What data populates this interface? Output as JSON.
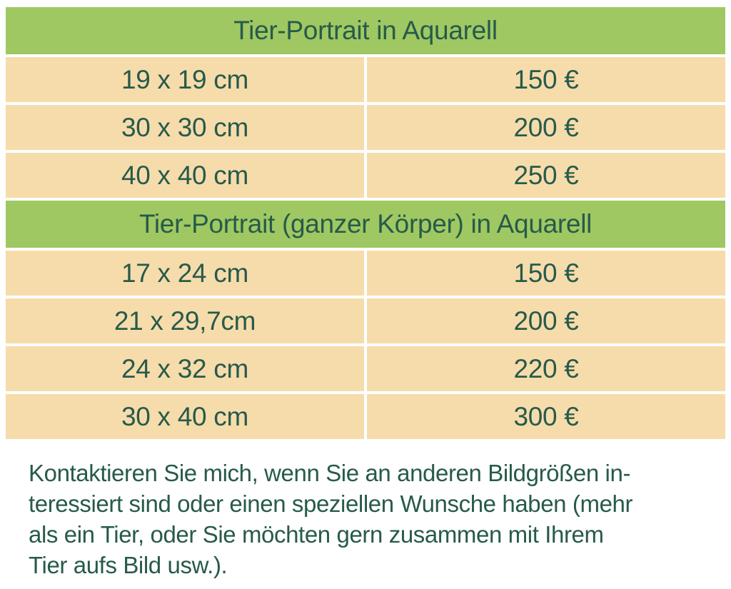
{
  "colors": {
    "section_header_bg": "#9fc862",
    "row_bg": "#f6dcab",
    "text": "#275a4b",
    "page_bg": "#ffffff"
  },
  "pricing_table": {
    "sections": [
      {
        "header": "Tier-Portrait in Aquarell",
        "rows": [
          {
            "size": "19 x 19 cm",
            "price": "150 €"
          },
          {
            "size": "30 x 30 cm",
            "price": "200 €"
          },
          {
            "size": "40 x 40 cm",
            "price": "250 €"
          }
        ]
      },
      {
        "header": "Tier-Portrait (ganzer Körper) in Aquarell",
        "rows": [
          {
            "size": "17 x 24 cm",
            "price": "150 €"
          },
          {
            "size": "21 x 29,7cm",
            "price": "200 €"
          },
          {
            "size": "24 x 32 cm",
            "price": "220 €"
          },
          {
            "size": "30 x 40 cm",
            "price": "300 €"
          }
        ]
      }
    ]
  },
  "note": {
    "lines": [
      "Kontaktieren Sie mich, wenn Sie an anderen Bildgrößen in-",
      "teressiert sind oder einen speziellen Wunsche haben (mehr",
      "als ein Tier, oder Sie möchten gern zusammen mit Ihrem",
      "Tier aufs Bild usw.)."
    ],
    "full_text": "Kontaktieren Sie mich, wenn Sie an anderen Bildgrößen interessiert sind oder einen speziellen Wunsche haben (mehr als ein Tier, oder Sie möchten gern zusammen mit Ihrem Tier aufs Bild usw.)."
  }
}
